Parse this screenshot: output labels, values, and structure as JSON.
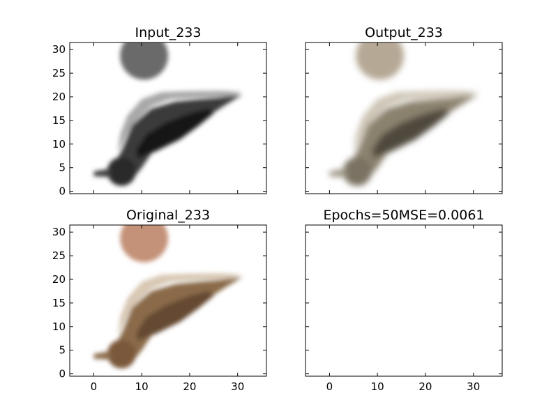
{
  "chart_data": [
    {
      "type": "image",
      "title": "Input_233",
      "image": "grayscale-bird",
      "xlim": [
        -5,
        36
      ],
      "ylim": [
        31.5,
        -0.5
      ],
      "xticks": [
        0,
        10,
        20,
        30
      ],
      "xticklabels": [
        "",
        "",
        "",
        ""
      ],
      "yticks": [
        0,
        5,
        10,
        15,
        20,
        25,
        30
      ],
      "yticklabels": [
        "0",
        "5",
        "10",
        "15",
        "20",
        "25",
        "30"
      ]
    },
    {
      "type": "image",
      "title": "Output_233",
      "image": "reconstructed-color-bird",
      "xlim": [
        -5,
        36
      ],
      "ylim": [
        31.5,
        -0.5
      ],
      "xticks": [
        0,
        10,
        20,
        30
      ],
      "xticklabels": [
        "",
        "",
        "",
        ""
      ],
      "yticks": [
        0,
        5,
        10,
        15,
        20,
        25,
        30
      ],
      "yticklabels": [
        "",
        "",
        "",
        "",
        "",
        "",
        ""
      ]
    },
    {
      "type": "image",
      "title": "Original_233",
      "image": "original-color-bird",
      "xlim": [
        -5,
        36
      ],
      "ylim": [
        31.5,
        -0.5
      ],
      "xticks": [
        0,
        10,
        20,
        30
      ],
      "xticklabels": [
        "0",
        "10",
        "20",
        "30"
      ],
      "yticks": [
        0,
        5,
        10,
        15,
        20,
        25,
        30
      ],
      "yticklabels": [
        "0",
        "5",
        "10",
        "15",
        "20",
        "25",
        "30"
      ]
    },
    {
      "type": "empty",
      "title": "Epochs=50MSE=0.0061",
      "xlim": [
        -5,
        36
      ],
      "ylim": [
        31.5,
        -0.5
      ],
      "xticks": [
        0,
        10,
        20,
        30
      ],
      "xticklabels": [
        "0",
        "10",
        "20",
        "30"
      ],
      "yticks": [
        0,
        5,
        10,
        15,
        20,
        25,
        30
      ],
      "yticklabels": [
        "",
        "",
        "",
        "",
        "",
        "",
        ""
      ]
    }
  ],
  "palettes": {
    "grayscale-bird": {
      "body": "#3a3a3a",
      "head": "#2a2a2a",
      "wing": "#151515",
      "belly": "#a8a8a8",
      "leg": "#8a8a8a",
      "feet": "#6a6a6a",
      "beak": "#3f3f3f"
    },
    "reconstructed-color-bird": {
      "body": "#8b826e",
      "head": "#7a7262",
      "wing": "#4f4a3d",
      "belly": "#cdc5b5",
      "leg": "#bfb2a0",
      "feet": "#b5a894",
      "beak": "#9a9280"
    },
    "original-color-bird": {
      "body": "#8a6a4a",
      "head": "#7a583a",
      "wing": "#654a30",
      "belly": "#d8c8b4",
      "leg": "#caa58c",
      "feet": "#c49278",
      "beak": "#8a6a4c"
    }
  }
}
